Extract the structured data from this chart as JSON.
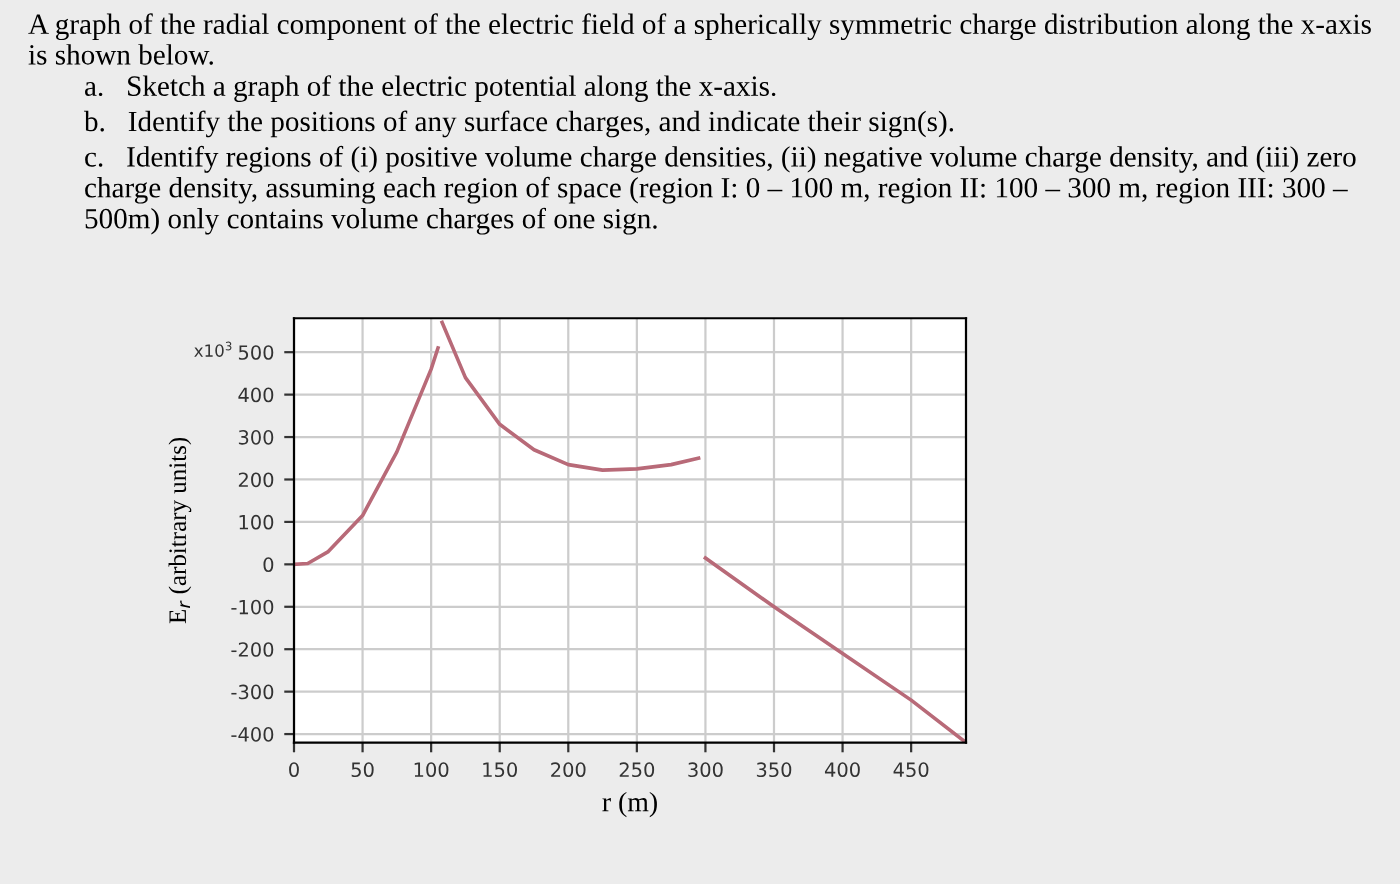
{
  "chart_data": {
    "type": "line",
    "title": "A graph of the radial component of the electric field of a spherically symmetric charge distribution along the x-axis is shown below.",
    "annotations": [
      "a.   Sketch a graph of the electric potential along the x-axis.",
      "b.   Identify the positions of any surface charges, and indicate their sign(s).",
      "c.   Identify regions of (i) positive volume charge densities, (ii) negative volume charge density, and (iii) zero charge density, assuming each region of space (region I: 0 – 100 m, region II: 100 – 300 m, region III: 300 – 500m) only contains volume charges of one sign.",
      "x10$^{3}$"
    ],
    "xlabel": "r (m)",
    "ylabel": "E$_{r}$ (arbitrary units)",
    "series": [
      {
        "color": "#b86a78",
        "x": [
          0,
          10,
          25,
          50,
          75,
          100,
          105
        ],
        "values": [
          0,
          2,
          30,
          115,
          265,
          460,
          510
        ]
      },
      {
        "color": "#b86a78",
        "x": [
          108,
          125,
          150,
          175,
          200,
          225,
          250,
          275,
          295
        ],
        "values": [
          570,
          440,
          330,
          270,
          235,
          222,
          225,
          235,
          250
        ]
      },
      {
        "color": "#b86a78",
        "x": [
          300,
          350,
          400,
          450,
          490
        ],
        "values": [
          15,
          -100,
          -210,
          -320,
          -420
        ]
      }
    ],
    "xlim": [
      0,
      490
    ],
    "ylim": [
      -420,
      580
    ],
    "xticks": [
      0,
      50,
      100,
      150,
      200,
      250,
      300,
      350,
      400,
      450
    ],
    "yticks": [
      -400,
      -300,
      -200,
      -100,
      0,
      100,
      200,
      300,
      400,
      500
    ],
    "grid": true,
    "marker": "none",
    "line_style": "solid"
  }
}
